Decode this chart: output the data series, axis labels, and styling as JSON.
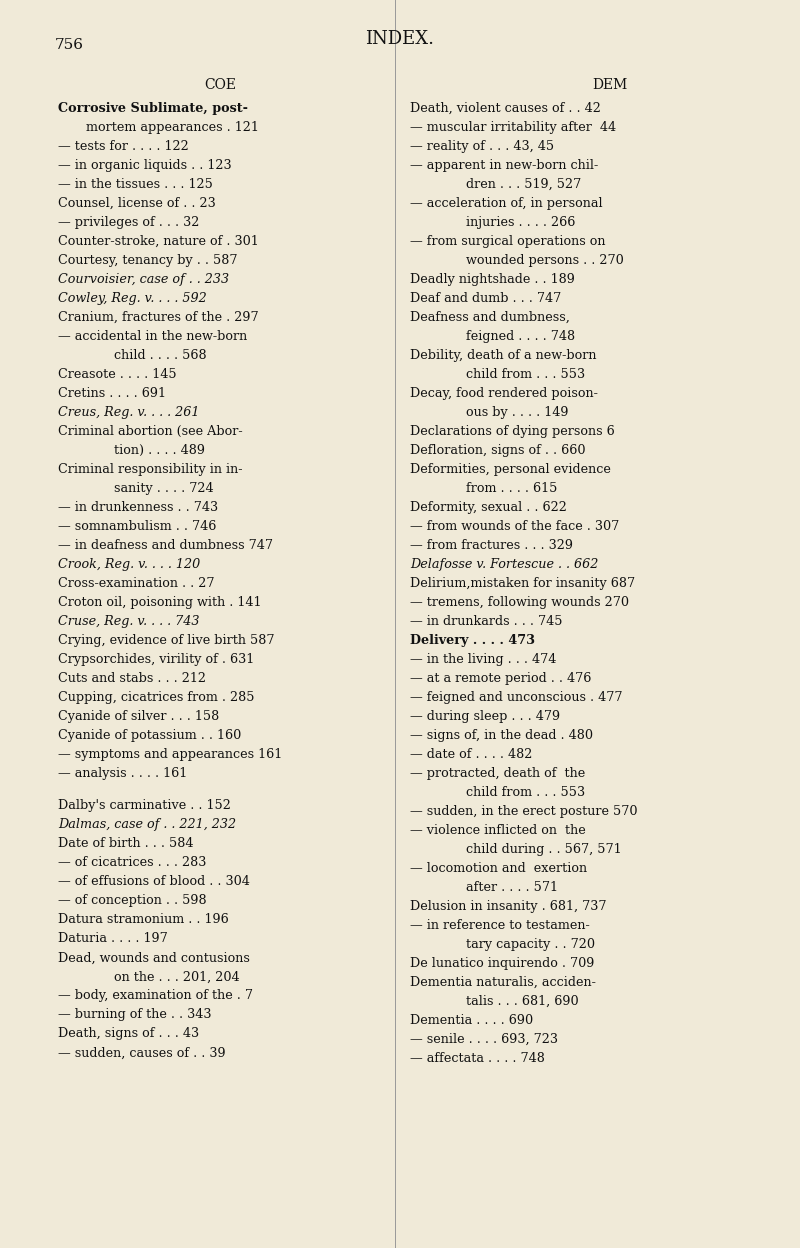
{
  "background_color": "#f0ead8",
  "page_number": "756",
  "page_title": "INDEX.",
  "col_header_left": "COE",
  "col_header_right": "DEM",
  "left_entries": [
    {
      "text": "Corrosive Sublimate, post-",
      "indent": 0,
      "style": "sc",
      "page": ""
    },
    {
      "text": "mortem appearances . 121",
      "indent": 1,
      "style": "",
      "page": ""
    },
    {
      "text": "— tests for . . . . 122",
      "indent": 0,
      "style": "",
      "page": ""
    },
    {
      "text": "— in organic liquids . . 123",
      "indent": 0,
      "style": "",
      "page": ""
    },
    {
      "text": "— in the tissues . . . 125",
      "indent": 0,
      "style": "",
      "page": ""
    },
    {
      "text": "Counsel, license of . . 23",
      "indent": 0,
      "style": "",
      "page": ""
    },
    {
      "text": "— privileges of . . . 32",
      "indent": 0,
      "style": "",
      "page": ""
    },
    {
      "text": "Counter-stroke, nature of . 301",
      "indent": 0,
      "style": "",
      "page": ""
    },
    {
      "text": "Courtesy, tenancy by . . 587",
      "indent": 0,
      "style": "",
      "page": ""
    },
    {
      "text": "Courvoisier, case of . . 233",
      "indent": 0,
      "style": "italic",
      "page": ""
    },
    {
      "text": "Cowley, Reg. v. . . . 592",
      "indent": 0,
      "style": "italic",
      "page": ""
    },
    {
      "text": "Cranium, fractures of the . 297",
      "indent": 0,
      "style": "",
      "page": ""
    },
    {
      "text": "— accidental in the new-born",
      "indent": 0,
      "style": "",
      "page": ""
    },
    {
      "text": "child . . . . 568",
      "indent": 2,
      "style": "",
      "page": ""
    },
    {
      "text": "Creasote . . . . 145",
      "indent": 0,
      "style": "",
      "page": ""
    },
    {
      "text": "Cretins . . . . 691",
      "indent": 0,
      "style": "",
      "page": ""
    },
    {
      "text": "Creus, Reg. v. . . . 261",
      "indent": 0,
      "style": "italic",
      "page": ""
    },
    {
      "text": "Criminal abortion (see Abor-",
      "indent": 0,
      "style": "",
      "page": ""
    },
    {
      "text": "tion) . . . . 489",
      "indent": 2,
      "style": "",
      "page": ""
    },
    {
      "text": "Criminal responsibility in in-",
      "indent": 0,
      "style": "",
      "page": ""
    },
    {
      "text": "sanity . . . . 724",
      "indent": 2,
      "style": "",
      "page": ""
    },
    {
      "text": "— in drunkenness . . 743",
      "indent": 0,
      "style": "",
      "page": ""
    },
    {
      "text": "— somnambulism . . 746",
      "indent": 0,
      "style": "",
      "page": ""
    },
    {
      "text": "— in deafness and dumbness 747",
      "indent": 0,
      "style": "",
      "page": ""
    },
    {
      "text": "Crook, Reg. v. . . . 120",
      "indent": 0,
      "style": "italic",
      "page": ""
    },
    {
      "text": "Cross-examination . . 27",
      "indent": 0,
      "style": "",
      "page": ""
    },
    {
      "text": "Croton oil, poisoning with . 141",
      "indent": 0,
      "style": "",
      "page": ""
    },
    {
      "text": "Cruse, Reg. v. . . . 743",
      "indent": 0,
      "style": "italic",
      "page": ""
    },
    {
      "text": "Crying, evidence of live birth 587",
      "indent": 0,
      "style": "",
      "page": ""
    },
    {
      "text": "Crypsorchides, virility of . 631",
      "indent": 0,
      "style": "",
      "page": ""
    },
    {
      "text": "Cuts and stabs . . . 212",
      "indent": 0,
      "style": "",
      "page": ""
    },
    {
      "text": "Cupping, cicatrices from . 285",
      "indent": 0,
      "style": "",
      "page": ""
    },
    {
      "text": "Cyanide of silver . . . 158",
      "indent": 0,
      "style": "",
      "page": ""
    },
    {
      "text": "Cyanide of potassium . . 160",
      "indent": 0,
      "style": "",
      "page": ""
    },
    {
      "text": "— symptoms and appearances 161",
      "indent": 0,
      "style": "",
      "page": ""
    },
    {
      "text": "— analysis . . . . 161",
      "indent": 0,
      "style": "",
      "page": ""
    },
    {
      "text": " ",
      "indent": 0,
      "style": "",
      "page": ""
    },
    {
      "text": "Dalby's carminative . . 152",
      "indent": 0,
      "style": "",
      "page": ""
    },
    {
      "text": "Dalmas, case of . . 221, 232",
      "indent": 0,
      "style": "italic",
      "page": ""
    },
    {
      "text": "Date of birth . . . 584",
      "indent": 0,
      "style": "",
      "page": ""
    },
    {
      "text": "— of cicatrices . . . 283",
      "indent": 0,
      "style": "",
      "page": ""
    },
    {
      "text": "— of effusions of blood . . 304",
      "indent": 0,
      "style": "",
      "page": ""
    },
    {
      "text": "— of conception . . 598",
      "indent": 0,
      "style": "",
      "page": ""
    },
    {
      "text": "Datura stramonium . . 196",
      "indent": 0,
      "style": "",
      "page": ""
    },
    {
      "text": "Daturia . . . . 197",
      "indent": 0,
      "style": "",
      "page": ""
    },
    {
      "text": "Dead, wounds and contusions",
      "indent": 0,
      "style": "",
      "page": ""
    },
    {
      "text": "on the . . . 201, 204",
      "indent": 2,
      "style": "",
      "page": ""
    },
    {
      "text": "— body, examination of the . 7",
      "indent": 0,
      "style": "",
      "page": ""
    },
    {
      "text": "— burning of the . . 343",
      "indent": 0,
      "style": "",
      "page": ""
    },
    {
      "text": "Death, signs of . . . 43",
      "indent": 0,
      "style": "",
      "page": ""
    },
    {
      "text": "— sudden, causes of . . 39",
      "indent": 0,
      "style": "",
      "page": ""
    }
  ],
  "right_entries": [
    {
      "text": "Death, violent causes of . . 42",
      "indent": 0,
      "style": "",
      "page": ""
    },
    {
      "text": "— muscular irritability after  44",
      "indent": 0,
      "style": "",
      "page": ""
    },
    {
      "text": "— reality of . . . 43, 45",
      "indent": 0,
      "style": "",
      "page": ""
    },
    {
      "text": "— apparent in new-born chil-",
      "indent": 0,
      "style": "",
      "page": ""
    },
    {
      "text": "dren . . . 519, 527",
      "indent": 2,
      "style": "",
      "page": ""
    },
    {
      "text": "— acceleration of, in personal",
      "indent": 0,
      "style": "",
      "page": ""
    },
    {
      "text": "injuries . . . . 266",
      "indent": 2,
      "style": "",
      "page": ""
    },
    {
      "text": "— from surgical operations on",
      "indent": 0,
      "style": "",
      "page": ""
    },
    {
      "text": "wounded persons . . 270",
      "indent": 2,
      "style": "",
      "page": ""
    },
    {
      "text": "Deadly nightshade . . 189",
      "indent": 0,
      "style": "",
      "page": ""
    },
    {
      "text": "Deaf and dumb . . . 747",
      "indent": 0,
      "style": "",
      "page": ""
    },
    {
      "text": "Deafness and dumbness,",
      "indent": 0,
      "style": "",
      "page": ""
    },
    {
      "text": "feigned . . . . 748",
      "indent": 2,
      "style": "",
      "page": ""
    },
    {
      "text": "Debility, death of a new-born",
      "indent": 0,
      "style": "",
      "page": ""
    },
    {
      "text": "child from . . . 553",
      "indent": 2,
      "style": "",
      "page": ""
    },
    {
      "text": "Decay, food rendered poison-",
      "indent": 0,
      "style": "",
      "page": ""
    },
    {
      "text": "ous by . . . . 149",
      "indent": 2,
      "style": "",
      "page": ""
    },
    {
      "text": "Declarations of dying persons 6",
      "indent": 0,
      "style": "",
      "page": ""
    },
    {
      "text": "Defloration, signs of . . 660",
      "indent": 0,
      "style": "",
      "page": ""
    },
    {
      "text": "Deformities, personal evidence",
      "indent": 0,
      "style": "",
      "page": ""
    },
    {
      "text": "from . . . . 615",
      "indent": 2,
      "style": "",
      "page": ""
    },
    {
      "text": "Deformity, sexual . . 622",
      "indent": 0,
      "style": "",
      "page": ""
    },
    {
      "text": "— from wounds of the face . 307",
      "indent": 0,
      "style": "",
      "page": ""
    },
    {
      "text": "— from fractures . . . 329",
      "indent": 0,
      "style": "",
      "page": ""
    },
    {
      "text": "Delafosse v. Fortescue . . 662",
      "indent": 0,
      "style": "italic",
      "page": ""
    },
    {
      "text": "Delirium,mistaken for insanity 687",
      "indent": 0,
      "style": "",
      "page": ""
    },
    {
      "text": "— tremens, following wounds 270",
      "indent": 0,
      "style": "",
      "page": ""
    },
    {
      "text": "— in drunkards . . . 745",
      "indent": 0,
      "style": "",
      "page": ""
    },
    {
      "text": "Delivery . . . . 473",
      "indent": 0,
      "style": "sc",
      "page": ""
    },
    {
      "text": "— in the living . . . 474",
      "indent": 0,
      "style": "",
      "page": ""
    },
    {
      "text": "— at a remote period . . 476",
      "indent": 0,
      "style": "",
      "page": ""
    },
    {
      "text": "— feigned and unconscious . 477",
      "indent": 0,
      "style": "",
      "page": ""
    },
    {
      "text": "— during sleep . . . 479",
      "indent": 0,
      "style": "",
      "page": ""
    },
    {
      "text": "— signs of, in the dead . 480",
      "indent": 0,
      "style": "",
      "page": ""
    },
    {
      "text": "— date of . . . . 482",
      "indent": 0,
      "style": "",
      "page": ""
    },
    {
      "text": "— protracted, death of  the",
      "indent": 0,
      "style": "",
      "page": ""
    },
    {
      "text": "child from . . . 553",
      "indent": 2,
      "style": "",
      "page": ""
    },
    {
      "text": "— sudden, in the erect posture 570",
      "indent": 0,
      "style": "",
      "page": ""
    },
    {
      "text": "— violence inflicted on  the",
      "indent": 0,
      "style": "",
      "page": ""
    },
    {
      "text": "child during . . 567, 571",
      "indent": 2,
      "style": "",
      "page": ""
    },
    {
      "text": "— locomotion and  exertion",
      "indent": 0,
      "style": "",
      "page": ""
    },
    {
      "text": "after . . . . 571",
      "indent": 2,
      "style": "",
      "page": ""
    },
    {
      "text": "Delusion in insanity . 681, 737",
      "indent": 0,
      "style": "",
      "page": ""
    },
    {
      "text": "— in reference to testamen-",
      "indent": 0,
      "style": "",
      "page": ""
    },
    {
      "text": "tary capacity . . 720",
      "indent": 2,
      "style": "",
      "page": ""
    },
    {
      "text": "De lunatico inquirendo . 709",
      "indent": 0,
      "style": "",
      "page": ""
    },
    {
      "text": "Dementia naturalis, acciden-",
      "indent": 0,
      "style": "",
      "page": ""
    },
    {
      "text": "talis . . . 681, 690",
      "indent": 2,
      "style": "",
      "page": ""
    },
    {
      "text": "Dementia . . . . 690",
      "indent": 0,
      "style": "",
      "page": ""
    },
    {
      "text": "— senile . . . . 693, 723",
      "indent": 0,
      "style": "",
      "page": ""
    },
    {
      "text": "— affectata . . . . 748",
      "indent": 0,
      "style": "",
      "page": ""
    }
  ]
}
